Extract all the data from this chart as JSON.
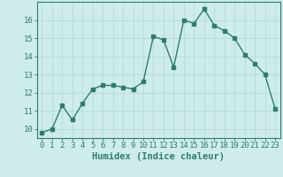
{
  "x": [
    0,
    1,
    2,
    3,
    4,
    5,
    6,
    7,
    8,
    9,
    10,
    11,
    12,
    13,
    14,
    15,
    16,
    17,
    18,
    19,
    20,
    21,
    22,
    23
  ],
  "y": [
    9.8,
    10.0,
    11.3,
    10.5,
    11.4,
    12.2,
    12.4,
    12.4,
    12.3,
    12.2,
    12.6,
    15.1,
    14.9,
    13.4,
    16.0,
    15.8,
    16.6,
    15.7,
    15.4,
    15.0,
    14.1,
    13.6,
    13.0,
    11.1
  ],
  "title": "",
  "xlabel": "Humidex (Indice chaleur)",
  "ylabel": "",
  "ylim": [
    9.5,
    17.0
  ],
  "xlim": [
    -0.5,
    23.5
  ],
  "yticks": [
    10,
    11,
    12,
    13,
    14,
    15,
    16
  ],
  "xticks": [
    0,
    1,
    2,
    3,
    4,
    5,
    6,
    7,
    8,
    9,
    10,
    11,
    12,
    13,
    14,
    15,
    16,
    17,
    18,
    19,
    20,
    21,
    22,
    23
  ],
  "line_color": "#2e7d6e",
  "marker": "s",
  "marker_size": 2.5,
  "bg_color": "#ceecea",
  "grid_color": "#aed8d4",
  "axes_color": "#2e7d6e",
  "tick_label_color": "#2e7d6e",
  "xlabel_color": "#2e7d6e",
  "xlabel_fontsize": 7.5,
  "tick_fontsize": 6.5
}
